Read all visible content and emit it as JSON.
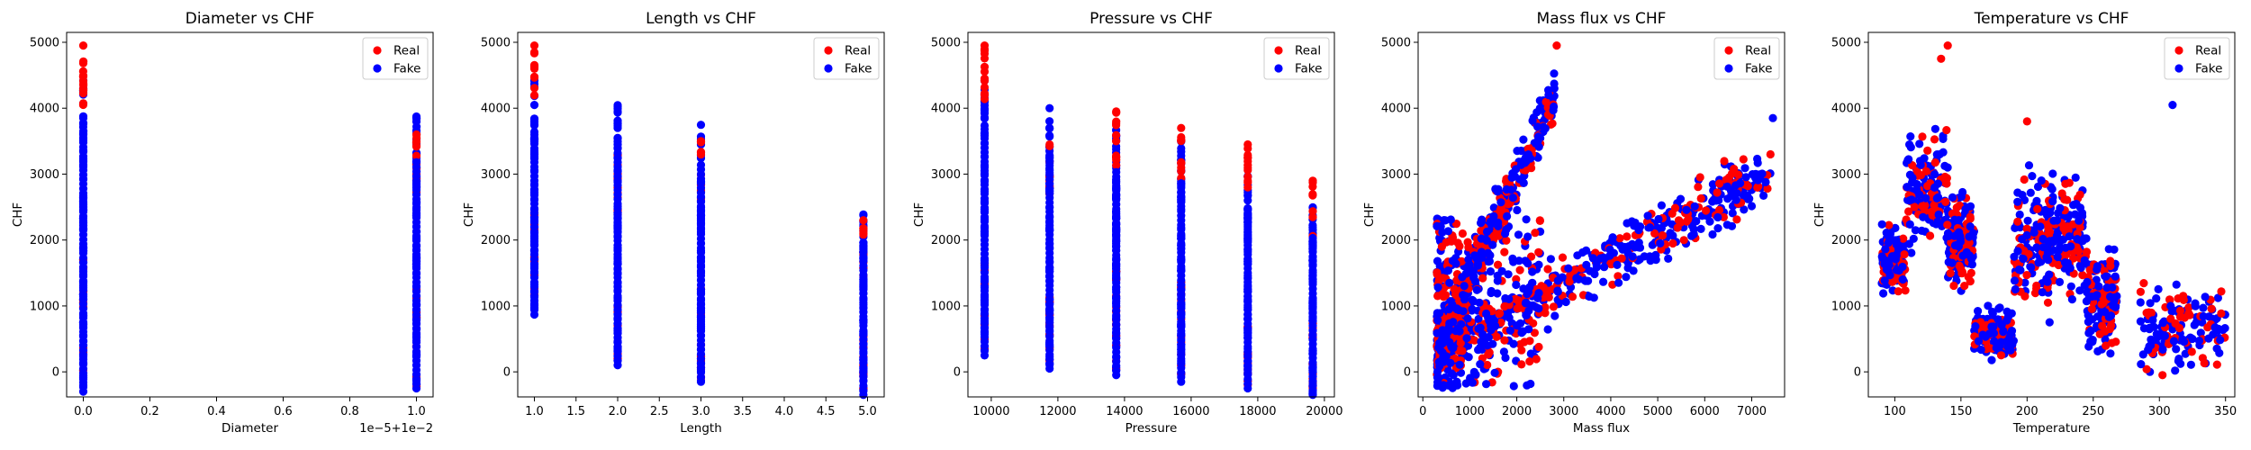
{
  "figure": {
    "background": "#ffffff"
  },
  "colors": {
    "real": "#ff0000",
    "fake": "#0000ff",
    "axis": "#000000",
    "legend_border": "#cccccc"
  },
  "chart_data": [
    {
      "type": "scatter",
      "title": "Diameter vs CHF",
      "xlabel": "Diameter",
      "ylabel": "CHF",
      "x_offset_text": "1e−5+1e−2",
      "xlim": [
        -0.05,
        1.05
      ],
      "ylim": [
        -380,
        5150
      ],
      "xticks": [
        0.0,
        0.2,
        0.4,
        0.6,
        0.8,
        1.0
      ],
      "xtick_labels": [
        "0.0",
        "0.2",
        "0.4",
        "0.6",
        "0.8",
        "1.0"
      ],
      "yticks": [
        0,
        1000,
        2000,
        3000,
        4000,
        5000
      ],
      "legend": {
        "entries": [
          "Real",
          "Fake"
        ],
        "loc": "upper right"
      },
      "series": [
        {
          "name": "Real",
          "columns": [
            {
              "x": 0.0,
              "ymin": -250,
              "ymax": 4950
            },
            {
              "x": 1.0,
              "ymin": -250,
              "ymax": 3600
            }
          ]
        },
        {
          "name": "Fake",
          "columns": [
            {
              "x": 0.0,
              "ymin": -300,
              "ymax": 4450
            },
            {
              "x": 1.0,
              "ymin": -250,
              "ymax": 3900
            }
          ]
        }
      ]
    },
    {
      "type": "scatter",
      "title": "Length vs CHF",
      "xlabel": "Length",
      "ylabel": "CHF",
      "xlim": [
        0.8,
        5.2
      ],
      "ylim": [
        -380,
        5150
      ],
      "xticks": [
        1.0,
        1.5,
        2.0,
        2.5,
        3.0,
        3.5,
        4.0,
        4.5,
        5.0
      ],
      "xtick_labels": [
        "1.0",
        "1.5",
        "2.0",
        "2.5",
        "3.0",
        "3.5",
        "4.0",
        "4.5",
        "5.0"
      ],
      "yticks": [
        0,
        1000,
        2000,
        3000,
        4000,
        5000
      ],
      "legend": {
        "entries": [
          "Real",
          "Fake"
        ],
        "loc": "upper right"
      },
      "series": [
        {
          "name": "Real",
          "columns": [
            {
              "x": 1.0,
              "ymin": 1000,
              "ymax": 4950
            },
            {
              "x": 2.0,
              "ymin": 150,
              "ymax": 3300
            },
            {
              "x": 3.0,
              "ymin": -100,
              "ymax": 3500
            },
            {
              "x": 4.95,
              "ymin": -300,
              "ymax": 2300
            }
          ]
        },
        {
          "name": "Fake",
          "columns": [
            {
              "x": 1.0,
              "ymin": 870,
              "ymax": 4450
            },
            {
              "x": 2.0,
              "ymin": 100,
              "ymax": 4050
            },
            {
              "x": 3.0,
              "ymin": -150,
              "ymax": 3900
            },
            {
              "x": 4.95,
              "ymin": -350,
              "ymax": 2450
            }
          ]
        }
      ]
    },
    {
      "type": "scatter",
      "title": "Pressure vs CHF",
      "xlabel": "Pressure",
      "ylabel": "CHF",
      "xlim": [
        9300,
        20300
      ],
      "ylim": [
        -380,
        5150
      ],
      "xticks": [
        10000,
        12000,
        14000,
        16000,
        18000,
        20000
      ],
      "xtick_labels": [
        "10000",
        "12000",
        "14000",
        "16000",
        "18000",
        "20000"
      ],
      "yticks": [
        0,
        1000,
        2000,
        3000,
        4000,
        5000
      ],
      "legend": {
        "entries": [
          "Real",
          "Fake"
        ],
        "loc": "upper right"
      },
      "series": [
        {
          "name": "Real",
          "columns": [
            {
              "x": 9800,
              "ymin": 250,
              "ymax": 4950
            },
            {
              "x": 11750,
              "ymin": 100,
              "ymax": 3450
            },
            {
              "x": 13750,
              "ymin": 0,
              "ymax": 3950
            },
            {
              "x": 15700,
              "ymin": -100,
              "ymax": 3700
            },
            {
              "x": 17700,
              "ymin": -200,
              "ymax": 3450
            },
            {
              "x": 19650,
              "ymin": -300,
              "ymax": 2900
            }
          ]
        },
        {
          "name": "Fake",
          "columns": [
            {
              "x": 9800,
              "ymin": 250,
              "ymax": 4450
            },
            {
              "x": 11750,
              "ymin": 50,
              "ymax": 4050
            },
            {
              "x": 13750,
              "ymin": -50,
              "ymax": 3700
            },
            {
              "x": 15700,
              "ymin": -150,
              "ymax": 3500
            },
            {
              "x": 17700,
              "ymin": -250,
              "ymax": 3050
            },
            {
              "x": 19650,
              "ymin": -350,
              "ymax": 2500
            }
          ]
        }
      ]
    },
    {
      "type": "scatter",
      "title": "Mass flux vs CHF",
      "xlabel": "Mass flux",
      "ylabel": "CHF",
      "xlim": [
        -100,
        7700
      ],
      "ylim": [
        -380,
        5150
      ],
      "xticks": [
        0,
        1000,
        2000,
        3000,
        4000,
        5000,
        6000,
        7000
      ],
      "xtick_labels": [
        "0",
        "1000",
        "2000",
        "3000",
        "4000",
        "5000",
        "6000",
        "7000"
      ],
      "yticks": [
        0,
        1000,
        2000,
        3000,
        4000,
        5000
      ],
      "legend": {
        "entries": [
          "Real",
          "Fake"
        ],
        "loc": "upper right"
      },
      "series": [
        {
          "name": "Real",
          "x_range": [
            250,
            7400
          ],
          "ylim_pattern": "fan"
        },
        {
          "name": "Fake",
          "x_range": [
            250,
            7500
          ],
          "ylim_pattern": "fan"
        }
      ]
    },
    {
      "type": "scatter",
      "title": "Temperature vs CHF",
      "xlabel": "Temperature",
      "ylabel": "CHF",
      "xlim": [
        80,
        357
      ],
      "ylim": [
        -380,
        5150
      ],
      "xticks": [
        100,
        150,
        200,
        250,
        300,
        350
      ],
      "xtick_labels": [
        "100",
        "150",
        "200",
        "250",
        "300",
        "350"
      ],
      "yticks": [
        0,
        1000,
        2000,
        3000,
        4000,
        5000
      ],
      "legend": {
        "entries": [
          "Real",
          "Fake"
        ],
        "loc": "upper right"
      },
      "series": [
        {
          "name": "Real",
          "x_range": [
            90,
            350
          ],
          "ymax": 4950
        },
        {
          "name": "Fake",
          "x_range": [
            90,
            350
          ],
          "ymax": 4050
        }
      ]
    }
  ]
}
